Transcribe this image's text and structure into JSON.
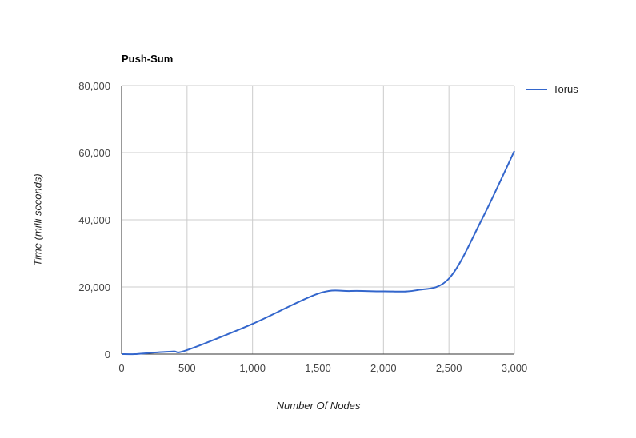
{
  "chart_data": {
    "type": "line",
    "title": "Push-Sum",
    "xlabel": "Number Of Nodes",
    "ylabel": "Time (milli seconds)",
    "xlim": [
      0,
      3000
    ],
    "ylim": [
      0,
      80000
    ],
    "x_ticks": [
      0,
      500,
      1000,
      1500,
      2000,
      2500,
      3000
    ],
    "x_tick_labels": [
      "0",
      "500",
      "1,000",
      "1,500",
      "2,000",
      "2,500",
      "3,000"
    ],
    "y_ticks": [
      0,
      20000,
      40000,
      60000,
      80000
    ],
    "y_tick_labels": [
      "0",
      "20,000",
      "40,000",
      "60,000",
      "80,000"
    ],
    "grid": true,
    "legend_position": "right",
    "series": [
      {
        "name": "Torus",
        "color": "#3366cc",
        "x": [
          0,
          100,
          200,
          300,
          400,
          500,
          1000,
          1500,
          1750,
          2000,
          2250,
          2500,
          2750,
          3000
        ],
        "y": [
          0,
          0,
          300,
          600,
          800,
          1200,
          9000,
          18000,
          18800,
          18700,
          19000,
          22500,
          40000,
          60500
        ]
      }
    ]
  }
}
